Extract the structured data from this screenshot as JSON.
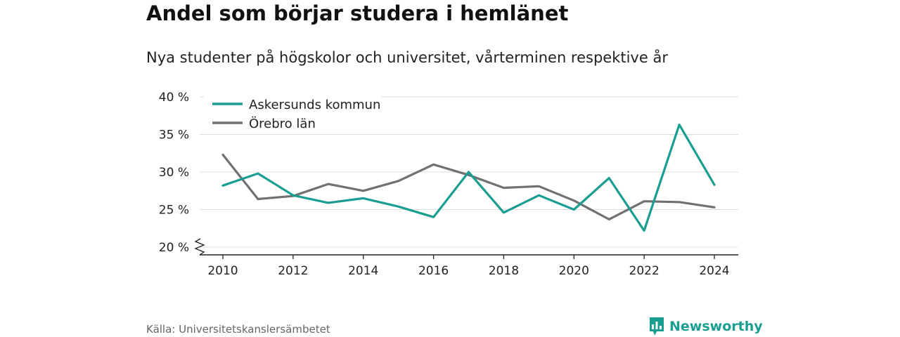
{
  "title": "Andel som börjar studera i hemlänet",
  "subtitle": "Nya studenter på högskolor och universitet, vårterminen respektive år",
  "source": "Källa: Universitetskanslersämbetet",
  "brand": "Newsworthy",
  "colors": {
    "kommun": "#1a9e91",
    "lan": "#717073",
    "grid": "#dddddd",
    "brand": "#1a9e91"
  },
  "chart_data": {
    "type": "line",
    "x": [
      2010,
      2011,
      2012,
      2013,
      2014,
      2015,
      2016,
      2017,
      2018,
      2019,
      2020,
      2021,
      2022,
      2023,
      2024
    ],
    "xticks": [
      2010,
      2012,
      2014,
      2016,
      2018,
      2020,
      2022,
      2024
    ],
    "xtick_labels": [
      "2010",
      "2012",
      "2014",
      "2016",
      "2018",
      "2020",
      "2022",
      "2024"
    ],
    "ylim": [
      20,
      40
    ],
    "yticks": [
      20,
      25,
      30,
      35,
      40
    ],
    "ytick_labels": [
      "20 %",
      "25 %",
      "30 %",
      "35 %",
      "40 %"
    ],
    "axis_break": true,
    "grid": true,
    "legend_position": "top-left",
    "series": [
      {
        "name": "Askersunds kommun",
        "color": "#1a9e91",
        "values": [
          28.2,
          29.8,
          26.9,
          25.9,
          26.5,
          25.4,
          24.0,
          30.0,
          24.6,
          26.9,
          25.0,
          29.2,
          22.2,
          36.3,
          28.3
        ]
      },
      {
        "name": "Örebro län",
        "color": "#717073",
        "values": [
          32.3,
          26.4,
          26.8,
          28.4,
          27.5,
          28.8,
          31.0,
          29.6,
          27.9,
          28.1,
          26.2,
          23.7,
          26.1,
          26.0,
          25.3
        ]
      }
    ]
  }
}
